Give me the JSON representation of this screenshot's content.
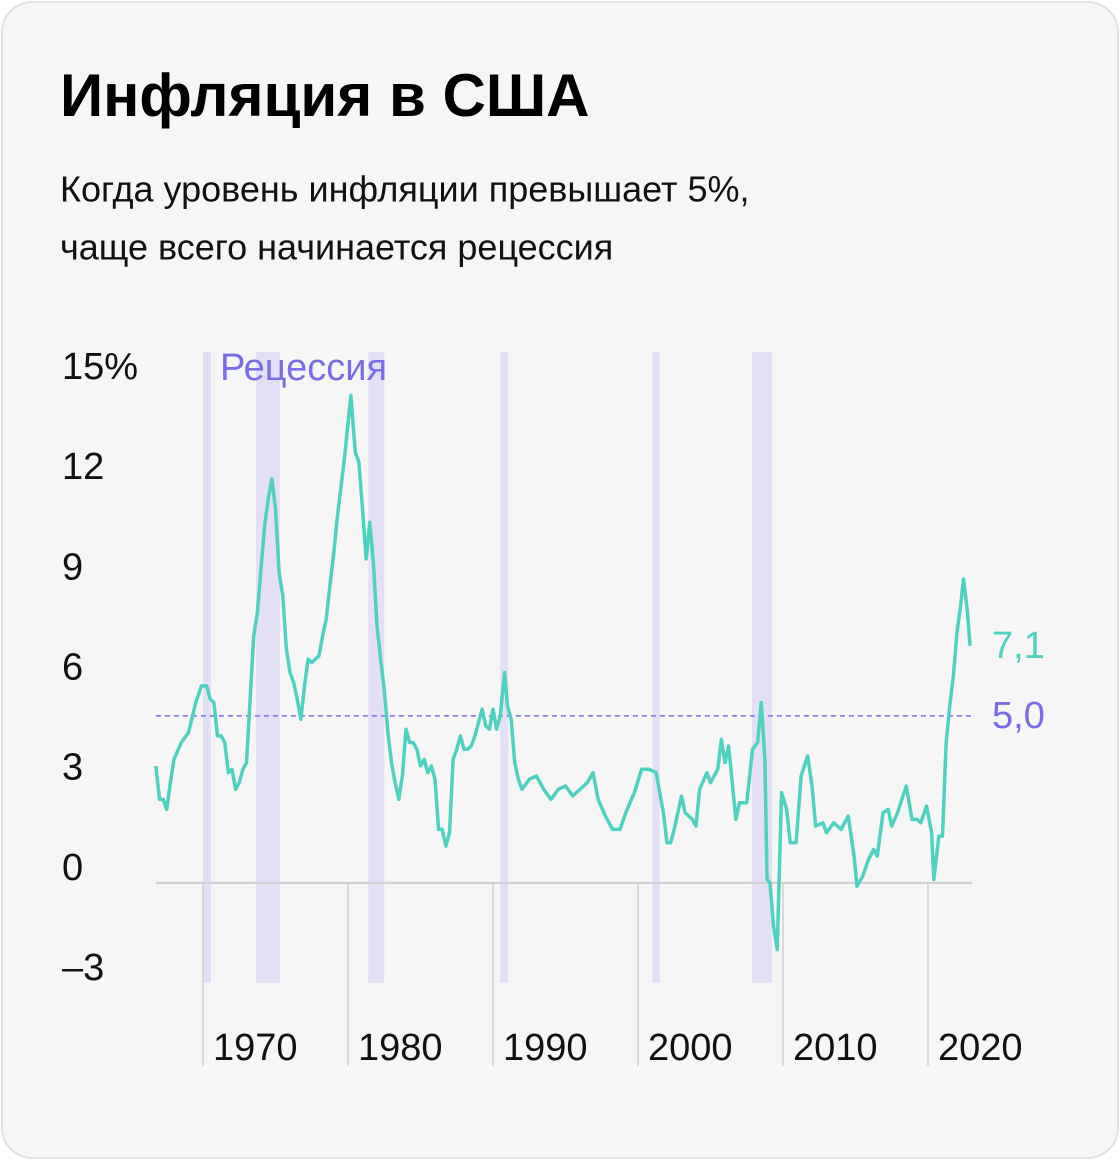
{
  "chart_data": {
    "type": "line",
    "title": "Инфляция в США",
    "subtitle": [
      "Когда уровень инфляции превышает 5%,",
      "чаще всего начинается рецессия"
    ],
    "recession_label": "Рецессия",
    "color": "#4fd1c0",
    "recession_color": "#e3e0f6",
    "threshold": {
      "value": 5,
      "label": "5,0",
      "color": "#7a6ee6"
    },
    "end_label": {
      "value": 7.1,
      "label": "7,1"
    },
    "recessions": [
      [
        1970.0,
        1970.55
      ],
      [
        1973.65,
        1975.3
      ],
      [
        1981.4,
        1982.5
      ],
      [
        1990.5,
        1991.05
      ],
      [
        2001.0,
        2001.5
      ],
      [
        2007.85,
        2009.25
      ]
    ],
    "x": [
      1966.75,
      1967.0,
      1967.25,
      1967.5,
      1967.75,
      1968.0,
      1968.5,
      1969.0,
      1969.5,
      1969.9,
      1970.25,
      1970.5,
      1970.75,
      1971.0,
      1971.25,
      1971.5,
      1971.75,
      1972.0,
      1972.25,
      1972.5,
      1972.75,
      1973.0,
      1973.25,
      1973.5,
      1973.75,
      1974.0,
      1974.25,
      1974.5,
      1974.75,
      1975.0,
      1975.25,
      1975.5,
      1975.75,
      1976.0,
      1976.25,
      1976.5,
      1976.75,
      1977.0,
      1977.25,
      1977.5,
      1977.75,
      1978.0,
      1978.25,
      1978.5,
      1978.75,
      1979.0,
      1979.25,
      1979.5,
      1979.75,
      1980.2,
      1980.5,
      1980.75,
      1981.0,
      1981.25,
      1981.5,
      1981.75,
      1982.0,
      1982.25,
      1982.5,
      1982.75,
      1983.0,
      1983.25,
      1983.5,
      1983.75,
      1984.0,
      1984.25,
      1984.5,
      1984.75,
      1985.0,
      1985.25,
      1985.5,
      1985.75,
      1986.0,
      1986.25,
      1986.5,
      1986.75,
      1987.0,
      1987.25,
      1987.5,
      1987.75,
      1988.0,
      1988.25,
      1988.5,
      1988.75,
      1989.0,
      1989.25,
      1989.5,
      1989.75,
      1990.0,
      1990.25,
      1990.5,
      1990.8,
      1991.0,
      1991.25,
      1991.5,
      1991.75,
      1992.0,
      1992.5,
      1993.0,
      1993.5,
      1994.0,
      1994.5,
      1995.0,
      1995.5,
      1996.0,
      1996.5,
      1996.9,
      1997.25,
      1997.75,
      1998.25,
      1998.75,
      1999.25,
      1999.75,
      2000.25,
      2000.75,
      2001.25,
      2001.75,
      2002.0,
      2002.25,
      2002.5,
      2002.75,
      2003.0,
      2003.25,
      2003.75,
      2004.0,
      2004.25,
      2004.75,
      2005.0,
      2005.5,
      2005.75,
      2006.0,
      2006.25,
      2006.75,
      2007.0,
      2007.5,
      2007.9,
      2008.25,
      2008.5,
      2008.75,
      2008.9,
      2009.1,
      2009.35,
      2009.6,
      2009.9,
      2010.25,
      2010.5,
      2010.9,
      2011.25,
      2011.7,
      2012.0,
      2012.25,
      2012.75,
      2013.0,
      2013.5,
      2014.0,
      2014.5,
      2014.9,
      2015.1,
      2015.5,
      2015.9,
      2016.25,
      2016.5,
      2016.9,
      2017.25,
      2017.5,
      2017.9,
      2018.5,
      2018.9,
      2019.25,
      2019.5,
      2019.9,
      2020.25,
      2020.4,
      2020.75,
      2021.0,
      2021.25,
      2021.5,
      2021.75,
      2022.0,
      2022.25,
      2022.45,
      2022.7,
      2022.9
    ],
    "values": [
      3.5,
      2.5,
      2.5,
      2.2,
      3.0,
      3.7,
      4.2,
      4.5,
      5.4,
      5.9,
      5.9,
      5.5,
      5.4,
      4.4,
      4.4,
      4.2,
      3.3,
      3.4,
      2.8,
      3.0,
      3.4,
      3.6,
      5.5,
      7.4,
      8.1,
      9.4,
      10.7,
      11.5,
      12.1,
      11.2,
      9.3,
      8.6,
      7.0,
      6.3,
      6.0,
      5.5,
      4.9,
      5.9,
      6.7,
      6.6,
      6.7,
      6.8,
      7.4,
      7.9,
      8.9,
      9.8,
      10.9,
      11.8,
      12.7,
      14.6,
      12.9,
      12.6,
      11.2,
      9.7,
      10.8,
      9.6,
      7.7,
      6.7,
      5.8,
      4.5,
      3.6,
      3.0,
      2.5,
      3.2,
      4.6,
      4.2,
      4.2,
      4.0,
      3.5,
      3.7,
      3.3,
      3.5,
      3.1,
      1.6,
      1.6,
      1.1,
      1.5,
      3.7,
      4.0,
      4.4,
      4.0,
      4.0,
      4.1,
      4.4,
      4.8,
      5.2,
      4.7,
      4.6,
      5.2,
      4.6,
      5.0,
      6.3,
      5.3,
      4.9,
      3.6,
      3.1,
      2.8,
      3.1,
      3.2,
      2.8,
      2.5,
      2.8,
      2.9,
      2.6,
      2.8,
      3.0,
      3.3,
      2.5,
      2.0,
      1.6,
      1.6,
      2.2,
      2.7,
      3.4,
      3.4,
      3.3,
      2.1,
      1.2,
      1.2,
      1.6,
      2.1,
      2.6,
      2.1,
      1.9,
      1.7,
      2.8,
      3.3,
      3.0,
      3.4,
      4.3,
      3.6,
      4.1,
      1.9,
      2.4,
      2.4,
      4.0,
      4.2,
      5.4,
      3.7,
      0.1,
      0.0,
      -1.3,
      -2.0,
      2.7,
      2.2,
      1.2,
      1.2,
      3.2,
      3.8,
      2.9,
      1.7,
      1.8,
      1.5,
      1.8,
      1.6,
      2.0,
      0.8,
      -0.1,
      0.2,
      0.7,
      1.0,
      0.8,
      2.1,
      2.2,
      1.7,
      2.1,
      2.9,
      1.9,
      1.9,
      1.8,
      2.3,
      1.5,
      0.1,
      1.4,
      1.4,
      4.2,
      5.3,
      6.2,
      7.5,
      8.3,
      9.1,
      8.2,
      7.1
    ],
    "xlim": [
      1965,
      2025
    ],
    "xticks": [
      1970,
      1980,
      1990,
      2000,
      2010,
      2020
    ],
    "ylim": [
      -3,
      15
    ],
    "yticks": [
      {
        "value": -3,
        "label": "–3"
      },
      0,
      3,
      6,
      9,
      12,
      {
        "value": 15,
        "label": "15%"
      }
    ]
  }
}
